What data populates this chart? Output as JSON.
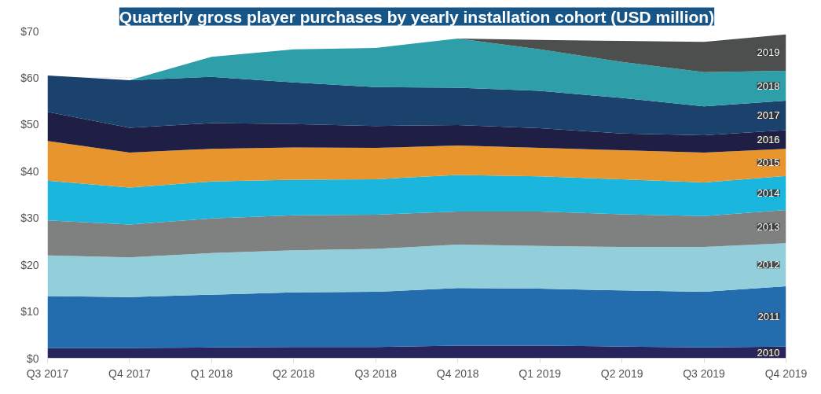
{
  "chart_data": {
    "type": "area",
    "stacked": true,
    "title": "Quarterly gross player purchases by yearly installation cohort (USD million)",
    "categories": [
      "Q3 2017",
      "Q4 2017",
      "Q1 2018",
      "Q2 2018",
      "Q3 2018",
      "Q4 2018",
      "Q1 2019",
      "Q2 2019",
      "Q3 2019",
      "Q4 2019"
    ],
    "series": [
      {
        "name": "2010",
        "color": "#27245e",
        "values": [
          2.2,
          2.2,
          2.3,
          2.4,
          2.4,
          2.7,
          2.7,
          2.5,
          2.3,
          2.5
        ]
      },
      {
        "name": "2011",
        "color": "#236daf",
        "values": [
          11.1,
          10.9,
          11.3,
          11.7,
          11.8,
          12.3,
          12.2,
          12.0,
          11.9,
          12.9
        ]
      },
      {
        "name": "2012",
        "color": "#93cfda",
        "values": [
          8.7,
          8.5,
          8.9,
          9.0,
          9.2,
          9.3,
          9.1,
          9.3,
          9.6,
          9.2
        ]
      },
      {
        "name": "2013",
        "color": "#7f8080",
        "values": [
          7.5,
          7.0,
          7.4,
          7.5,
          7.3,
          7.1,
          7.4,
          7.0,
          6.6,
          7.1
        ]
      },
      {
        "name": "2014",
        "color": "#1bb6de",
        "values": [
          8.5,
          7.9,
          7.9,
          7.6,
          7.6,
          7.8,
          7.5,
          7.5,
          7.2,
          7.3
        ]
      },
      {
        "name": "2015",
        "color": "#e8952d",
        "values": [
          8.5,
          7.5,
          7.0,
          6.9,
          6.7,
          6.3,
          6.1,
          6.2,
          6.4,
          5.8
        ]
      },
      {
        "name": "2016",
        "color": "#1f1e44",
        "values": [
          6.2,
          5.3,
          5.5,
          5.0,
          4.7,
          4.4,
          4.2,
          3.6,
          3.7,
          4.0
        ]
      },
      {
        "name": "2017",
        "color": "#1b426d",
        "values": [
          7.8,
          10.2,
          9.9,
          8.9,
          8.3,
          8.0,
          8.0,
          7.6,
          6.2,
          6.3
        ]
      },
      {
        "name": "2018",
        "color": "#2e9ea9",
        "values": [
          0,
          0,
          4.3,
          7.1,
          8.4,
          10.5,
          8.9,
          7.7,
          7.3,
          6.4
        ]
      },
      {
        "name": "2019",
        "color": "#4d4f4f",
        "values": [
          0,
          0,
          0,
          0,
          0,
          0,
          2.0,
          4.5,
          6.5,
          7.8
        ]
      }
    ],
    "ylim": [
      0,
      70
    ],
    "yticks": [
      {
        "value": 0,
        "label": "$0"
      },
      {
        "value": 10,
        "label": "$10"
      },
      {
        "value": 20,
        "label": "$20"
      },
      {
        "value": 30,
        "label": "$30"
      },
      {
        "value": 40,
        "label": "$40"
      },
      {
        "value": 50,
        "label": "$50"
      },
      {
        "value": 60,
        "label": "$60"
      },
      {
        "value": 70,
        "label": "$70"
      }
    ],
    "grid": "y",
    "legend": false
  }
}
